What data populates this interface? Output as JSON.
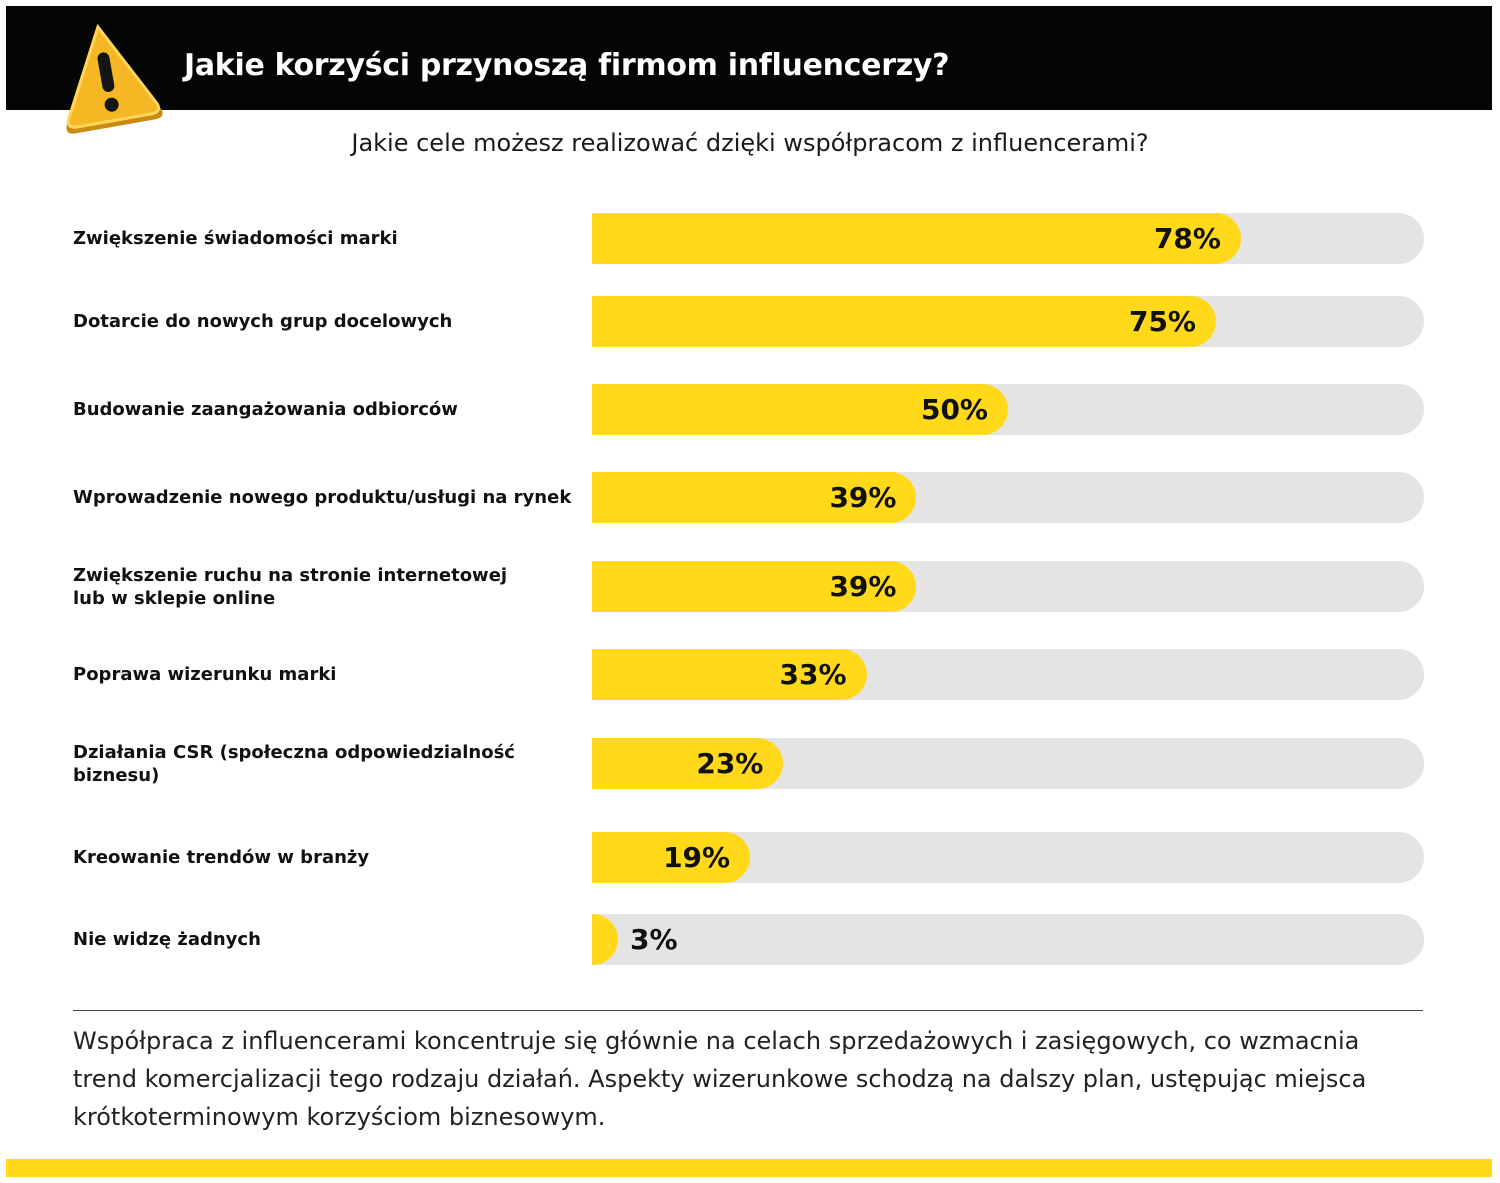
{
  "header": {
    "title": "Jakie korzyści przynoszą firmom influencerzy?",
    "icon": "warning-icon"
  },
  "subtitle": "Jakie cele możesz realizować dzięki współpracom z influencerami?",
  "chart_data": {
    "type": "bar",
    "orientation": "horizontal",
    "categories": [
      "Zwiększenie świadomości marki",
      "Dotarcie do nowych grup docelowych",
      "Budowanie zaangażowania odbiorców",
      "Wprowadzenie nowego produktu/usługi na rynek",
      "Zwiększenie ruchu na stronie internetowej\nlub w sklepie online",
      "Poprawa wizerunku marki",
      "Działania CSR (społeczna odpowiedzialność\nbiznesu)",
      "Kreowanie trendów w branży",
      "Nie widzę żadnych"
    ],
    "values": [
      78,
      75,
      50,
      39,
      39,
      33,
      23,
      19,
      3
    ],
    "value_labels": [
      "78%",
      "75%",
      "50%",
      "39%",
      "39%",
      "33%",
      "23%",
      "19%",
      "3%"
    ],
    "xlim": [
      0,
      100
    ],
    "unit": "%",
    "bar_color": "#ffd91a",
    "track_color": "#e4e4e4"
  },
  "summary": "Współpraca z influencerami koncentruje się głównie na celach sprzedażowych i zasięgowych, co wzmacnia trend komercjalizacji tego rodzaju działań. Aspekty wizerunkowe schodzą na dalszy plan, ustępując miejsca krótkoterminowym korzyściom biznesowym.",
  "colors": {
    "header_background": "#050505",
    "accent": "#ffd91a"
  }
}
